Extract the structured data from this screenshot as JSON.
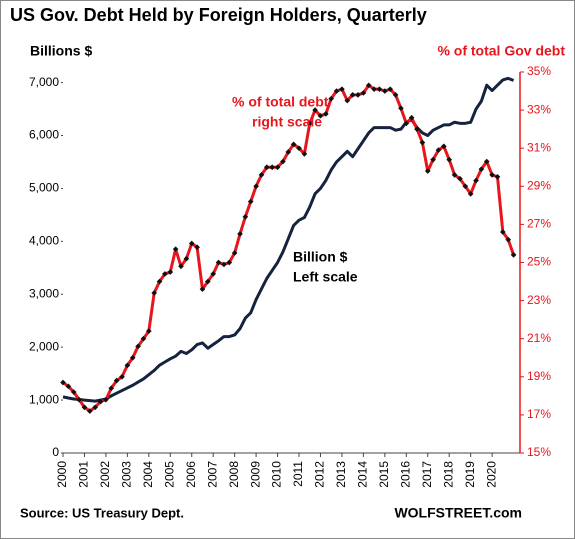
{
  "chart_data": {
    "type": "line",
    "title": "US Gov. Debt Held by Foreign Holders, Quarterly",
    "ylabel": "Billions $",
    "y2label": "% of total Gov debt",
    "source": "Source: US Treasury Dept.",
    "credit": "WOLFSTREET.com",
    "annotations": [
      {
        "lines": [
          "% of total debt",
          "right scale"
        ],
        "color": "#e8161c"
      },
      {
        "lines": [
          "Billion $",
          "Left scale"
        ],
        "color": "#000000"
      }
    ],
    "x": [
      2000,
      2000.25,
      2000.5,
      2000.75,
      2001,
      2001.25,
      2001.5,
      2001.75,
      2002,
      2002.25,
      2002.5,
      2002.75,
      2003,
      2003.25,
      2003.5,
      2003.75,
      2004,
      2004.25,
      2004.5,
      2004.75,
      2005,
      2005.25,
      2005.5,
      2005.75,
      2006,
      2006.25,
      2006.5,
      2006.75,
      2007,
      2007.25,
      2007.5,
      2007.75,
      2008,
      2008.25,
      2008.5,
      2008.75,
      2009,
      2009.25,
      2009.5,
      2009.75,
      2010,
      2010.25,
      2010.5,
      2010.75,
      2011,
      2011.25,
      2011.5,
      2011.75,
      2012,
      2012.25,
      2012.5,
      2012.75,
      2013,
      2013.25,
      2013.5,
      2013.75,
      2014,
      2014.25,
      2014.5,
      2014.75,
      2015,
      2015.25,
      2015.5,
      2015.75,
      2016,
      2016.25,
      2016.5,
      2016.75,
      2017,
      2017.25,
      2017.5,
      2017.75,
      2018,
      2018.25,
      2018.5,
      2018.75,
      2019,
      2019.25,
      2019.5,
      2019.75,
      2020,
      2020.25,
      2020.5,
      2020.75,
      2021
    ],
    "series": [
      {
        "color": "#16233f",
        "axis": "y",
        "markers": false,
        "values": [
          1060,
          1040,
          1020,
          1010,
          1000,
          990,
          980,
          1000,
          1020,
          1080,
          1130,
          1180,
          1230,
          1280,
          1340,
          1400,
          1480,
          1560,
          1660,
          1720,
          1780,
          1830,
          1920,
          1880,
          1950,
          2050,
          2080,
          1980,
          2050,
          2120,
          2200,
          2200,
          2230,
          2350,
          2550,
          2650,
          2900,
          3100,
          3300,
          3450,
          3600,
          3800,
          4050,
          4300,
          4400,
          4450,
          4650,
          4900,
          5000,
          5150,
          5350,
          5500,
          5600,
          5700,
          5600,
          5750,
          5900,
          6050,
          6150,
          6150,
          6150,
          6150,
          6100,
          6120,
          6250,
          6300,
          6150,
          6050,
          6000,
          6100,
          6150,
          6200,
          6200,
          6250,
          6230,
          6230,
          6250,
          6500,
          6650,
          6950,
          6850,
          6950,
          7050,
          7080,
          7040
        ]
      },
      {
        "color": "#e8161c",
        "axis": "y2",
        "markers": true,
        "values": [
          18.7,
          18.5,
          18.2,
          17.8,
          17.4,
          17.2,
          17.4,
          17.7,
          17.8,
          18.4,
          18.8,
          19.0,
          19.6,
          20.0,
          20.6,
          21.0,
          21.4,
          23.4,
          24.0,
          24.4,
          24.5,
          25.7,
          24.8,
          25.2,
          26.0,
          25.8,
          23.6,
          24.0,
          24.4,
          25.0,
          24.9,
          25.0,
          25.5,
          26.5,
          27.4,
          28.2,
          29.0,
          29.6,
          30.0,
          30.0,
          30.0,
          30.3,
          30.8,
          31.2,
          31.0,
          30.7,
          32.3,
          33.0,
          32.7,
          32.8,
          33.6,
          34.0,
          34.1,
          33.5,
          33.8,
          33.8,
          33.9,
          34.3,
          34.1,
          34.1,
          34.0,
          34.1,
          33.8,
          33.1,
          32.3,
          32.6,
          32.0,
          31.3,
          29.8,
          30.4,
          30.9,
          31.1,
          30.4,
          29.6,
          29.4,
          29.0,
          28.6,
          29.3,
          29.9,
          30.3,
          29.6,
          29.5,
          26.6,
          26.2,
          25.4
        ]
      }
    ],
    "xlim": [
      2000,
      2021.3
    ],
    "xticks": [
      2000,
      2001,
      2002,
      2003,
      2004,
      2005,
      2006,
      2007,
      2008,
      2009,
      2010,
      2011,
      2012,
      2013,
      2014,
      2015,
      2016,
      2017,
      2018,
      2019,
      2020
    ],
    "ylim": [
      0,
      7200
    ],
    "yticks": [
      0,
      {
        "value": 1000,
        "label": "1,000"
      },
      {
        "value": 2000,
        "label": "2,000"
      },
      {
        "value": 3000,
        "label": "3,000"
      },
      {
        "value": 4000,
        "label": "4,000"
      },
      {
        "value": 5000,
        "label": "5,000"
      },
      {
        "value": 6000,
        "label": "6,000"
      },
      {
        "value": 7000,
        "label": "7,000"
      }
    ],
    "y2lim": [
      15,
      35
    ],
    "y2ticks": [
      {
        "value": 15,
        "label": "15%"
      },
      {
        "value": 17,
        "label": "17%"
      },
      {
        "value": 19,
        "label": "19%"
      },
      {
        "value": 21,
        "label": "21%"
      },
      {
        "value": 23,
        "label": "23%"
      },
      {
        "value": 25,
        "label": "25%"
      },
      {
        "value": 27,
        "label": "27%"
      },
      {
        "value": 29,
        "label": "29%"
      },
      {
        "value": 31,
        "label": "31%"
      },
      {
        "value": 33,
        "label": "33%"
      },
      {
        "value": 35,
        "label": "35%"
      }
    ],
    "grid": false
  }
}
